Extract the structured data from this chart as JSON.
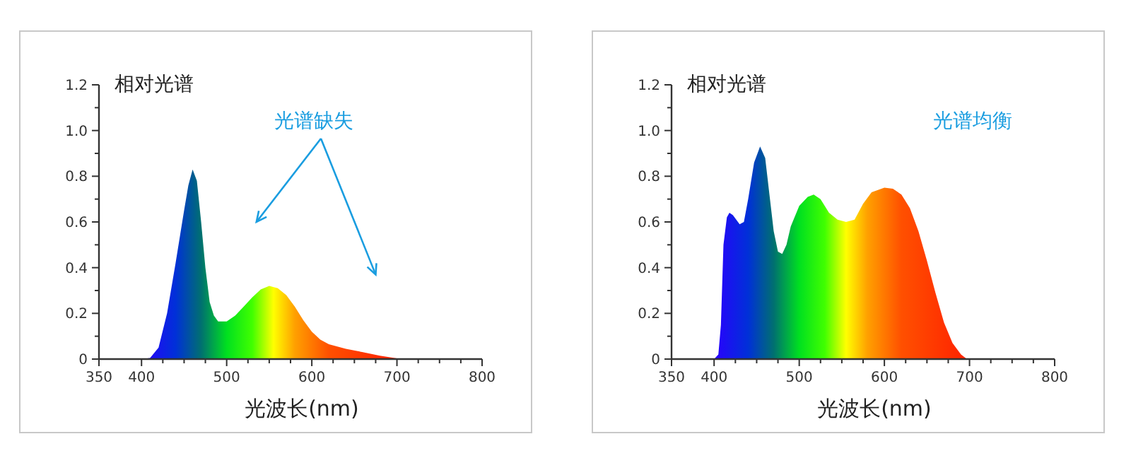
{
  "chart_data": [
    {
      "type": "area",
      "ylabel": "相对光谱",
      "xlabel": "光波长(nm)",
      "annotations": [
        "光谱缺失"
      ],
      "grid": false,
      "xlim": [
        350,
        800
      ],
      "xticks": [
        350,
        400,
        {
          "value": 425,
          "label": null
        },
        {
          "value": 450,
          "label": null
        },
        {
          "value": 475,
          "label": null
        },
        500,
        {
          "value": 525,
          "label": null
        },
        {
          "value": 550,
          "label": null
        },
        {
          "value": 575,
          "label": null
        },
        600,
        {
          "value": 625,
          "label": null
        },
        {
          "value": 650,
          "label": null
        },
        {
          "value": 675,
          "label": null
        },
        700,
        {
          "value": 725,
          "label": null
        },
        {
          "value": 750,
          "label": null
        },
        {
          "value": 775,
          "label": null
        },
        800
      ],
      "ylim": [
        0,
        1.2
      ],
      "yticks": [
        0,
        {
          "value": 0.1,
          "label": null
        },
        0.2,
        {
          "value": 0.3,
          "label": null
        },
        0.4,
        {
          "value": 0.5,
          "label": null
        },
        0.6,
        {
          "value": 0.7,
          "label": null
        },
        0.8,
        {
          "value": 0.9,
          "label": null
        },
        {
          "value": 1,
          "label": "1.0"
        },
        {
          "value": 1.1,
          "label": null
        },
        1.2
      ],
      "series": [
        {
          "x": [
            400,
            410,
            420,
            430,
            440,
            450,
            455,
            460,
            465,
            470,
            475,
            480,
            485,
            490,
            500,
            510,
            520,
            530,
            540,
            550,
            560,
            570,
            580,
            590,
            600,
            610,
            620,
            640,
            660,
            680,
            700,
            710
          ],
          "values": [
            0,
            0.005,
            0.05,
            0.2,
            0.42,
            0.65,
            0.76,
            0.83,
            0.78,
            0.6,
            0.4,
            0.25,
            0.19,
            0.165,
            0.165,
            0.19,
            0.23,
            0.27,
            0.305,
            0.32,
            0.31,
            0.28,
            0.23,
            0.17,
            0.12,
            0.085,
            0.065,
            0.045,
            0.03,
            0.015,
            0.003,
            0
          ]
        }
      ]
    },
    {
      "type": "area",
      "ylabel": "相对光谱",
      "xlabel": "光波长(nm)",
      "annotations": [
        "光谱均衡"
      ],
      "grid": false,
      "xlim": [
        350,
        800
      ],
      "xticks": [
        350,
        400,
        {
          "value": 425,
          "label": null
        },
        {
          "value": 450,
          "label": null
        },
        {
          "value": 475,
          "label": null
        },
        500,
        {
          "value": 525,
          "label": null
        },
        {
          "value": 550,
          "label": null
        },
        {
          "value": 575,
          "label": null
        },
        600,
        {
          "value": 625,
          "label": null
        },
        {
          "value": 650,
          "label": null
        },
        {
          "value": 675,
          "label": null
        },
        700,
        {
          "value": 725,
          "label": null
        },
        {
          "value": 750,
          "label": null
        },
        {
          "value": 775,
          "label": null
        },
        800
      ],
      "ylim": [
        0,
        1.2
      ],
      "yticks": [
        0,
        {
          "value": 0.1,
          "label": null
        },
        0.2,
        {
          "value": 0.3,
          "label": null
        },
        0.4,
        {
          "value": 0.5,
          "label": null
        },
        0.6,
        {
          "value": 0.7,
          "label": null
        },
        0.8,
        {
          "value": 0.9,
          "label": null
        },
        {
          "value": 1,
          "label": "1.0"
        },
        {
          "value": 1.1,
          "label": null
        },
        1.2
      ],
      "series": [
        {
          "x": [
            400,
            405,
            408,
            411,
            415,
            418,
            422,
            430,
            435,
            440,
            447,
            454,
            460,
            465,
            470,
            475,
            480,
            485,
            490,
            500,
            510,
            517,
            525,
            535,
            545,
            555,
            565,
            575,
            585,
            600,
            610,
            620,
            630,
            640,
            650,
            660,
            670,
            680,
            690,
            697
          ],
          "values": [
            0,
            0.02,
            0.15,
            0.5,
            0.62,
            0.64,
            0.63,
            0.59,
            0.6,
            0.7,
            0.86,
            0.93,
            0.88,
            0.72,
            0.56,
            0.47,
            0.46,
            0.5,
            0.58,
            0.67,
            0.71,
            0.72,
            0.7,
            0.64,
            0.61,
            0.6,
            0.61,
            0.68,
            0.73,
            0.75,
            0.745,
            0.72,
            0.66,
            0.56,
            0.43,
            0.29,
            0.16,
            0.07,
            0.02,
            0
          ]
        }
      ]
    }
  ]
}
